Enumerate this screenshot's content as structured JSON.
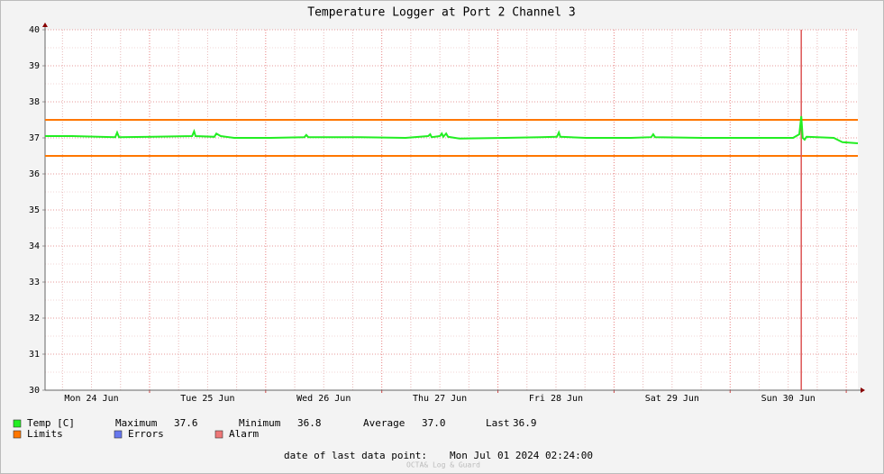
{
  "chart_data": {
    "type": "line",
    "title": "Temperature Logger at Port 2 Channel 3",
    "x": [
      2.4,
      8.0,
      16.9,
      17.3,
      17.7,
      24.8,
      32.8,
      33.2,
      33.5,
      37.4,
      37.8,
      38.7,
      41.5,
      49.0,
      56.0,
      56.4,
      56.8,
      67.6,
      76.9,
      81.6,
      82.0,
      82.3,
      84.0,
      84.4,
      84.7,
      85.3,
      85.7,
      88.1,
      97.4,
      104.8,
      108.2,
      108.6,
      108.9,
      114.2,
      123.5,
      127.7,
      128.1,
      128.5,
      138.4,
      147.7,
      157.0,
      158.3,
      158.7,
      159.0,
      159.4,
      159.8,
      165.4,
      167.2,
      170.4
    ],
    "series": [
      {
        "name": "Temp [C]",
        "color": "#22ee22",
        "values": [
          37.05,
          37.05,
          37.02,
          37.15,
          37.02,
          37.03,
          37.05,
          37.18,
          37.05,
          37.03,
          37.12,
          37.05,
          37.0,
          37.0,
          37.02,
          37.08,
          37.02,
          37.02,
          37.0,
          37.05,
          37.1,
          37.02,
          37.05,
          37.12,
          37.03,
          37.12,
          37.03,
          36.98,
          37.0,
          37.02,
          37.03,
          37.15,
          37.03,
          37.0,
          37.0,
          37.02,
          37.1,
          37.02,
          37.0,
          37.0,
          37.0,
          37.1,
          37.6,
          37.0,
          36.95,
          37.03,
          37.0,
          36.88,
          36.85
        ]
      }
    ],
    "limits": {
      "name": "Limits",
      "color": "#ff7700",
      "values": [
        37.5,
        36.5
      ]
    },
    "legend_extra": [
      {
        "name": "Errors",
        "color": "#6677ee"
      },
      {
        "name": "Alarm",
        "color": "#ee7777"
      }
    ],
    "alarm_x": 158.7,
    "xlim": [
      2.4,
      170.4
    ],
    "xticks": [
      {
        "value": 12,
        "label": "Mon 24 Jun"
      },
      {
        "value": 36,
        "label": "Tue 25 Jun"
      },
      {
        "value": 60,
        "label": "Wed 26 Jun"
      },
      {
        "value": 84,
        "label": "Thu 27 Jun"
      },
      {
        "value": 108,
        "label": "Fri 28 Jun"
      },
      {
        "value": 132,
        "label": "Sat 29 Jun"
      },
      {
        "value": 156,
        "label": "Sun 30 Jun"
      }
    ],
    "day_starts": [
      24,
      48,
      72,
      96,
      120,
      144,
      168
    ],
    "ylim": [
      30,
      40
    ],
    "yticks": [
      30,
      31,
      32,
      33,
      34,
      35,
      36,
      37,
      38,
      39,
      40
    ],
    "stats": [
      {
        "label": "Maximum",
        "value": "37.6"
      },
      {
        "label": "Minimum",
        "value": "36.8"
      },
      {
        "label": "Average",
        "value": "37.0"
      },
      {
        "label": "Last",
        "value": "36.9"
      }
    ],
    "footer": {
      "label": "date of last data point:",
      "value": "Mon Jul 01 2024 02:24:00"
    },
    "watermark": "OCTA& Log & Guard"
  }
}
